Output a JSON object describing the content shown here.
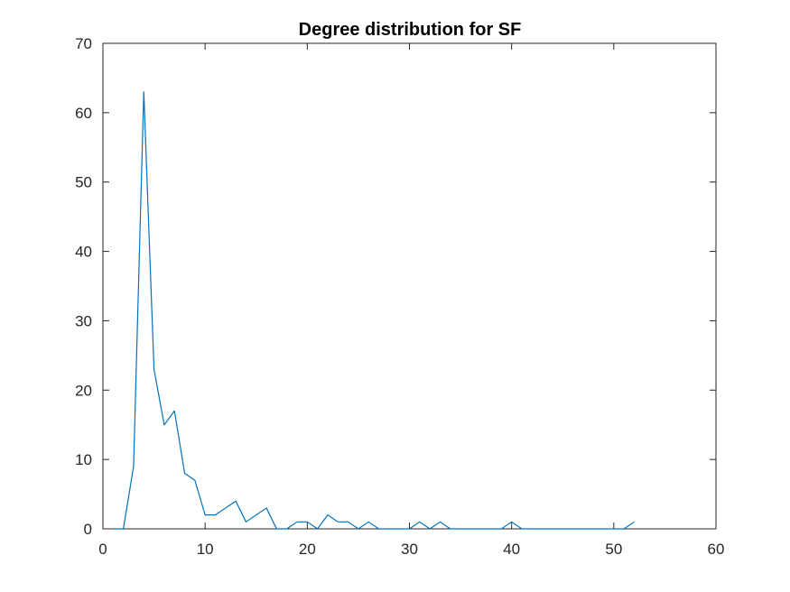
{
  "chart_data": {
    "type": "line",
    "title": "Degree distribution for SF",
    "xlabel": "",
    "ylabel": "",
    "xlim": [
      0,
      60
    ],
    "ylim": [
      0,
      70
    ],
    "x_ticks": [
      0,
      10,
      20,
      30,
      40,
      50,
      60
    ],
    "y_ticks": [
      0,
      10,
      20,
      30,
      40,
      50,
      60,
      70
    ],
    "grid": false,
    "legend": "none",
    "series": [
      {
        "color": "#0072BD",
        "x": [
          1,
          2,
          3,
          4,
          5,
          6,
          7,
          8,
          9,
          10,
          11,
          12,
          13,
          14,
          15,
          16,
          17,
          18,
          19,
          20,
          21,
          22,
          23,
          24,
          25,
          26,
          27,
          28,
          29,
          30,
          31,
          32,
          33,
          34,
          35,
          36,
          37,
          38,
          39,
          40,
          41,
          42,
          43,
          44,
          45,
          46,
          47,
          48,
          49,
          50,
          51,
          52
        ],
        "y": [
          0,
          0,
          9,
          63,
          23,
          15,
          17,
          8,
          7,
          2,
          2,
          3,
          4,
          1,
          2,
          3,
          0,
          0,
          1,
          1,
          0,
          2,
          1,
          1,
          0,
          1,
          0,
          0,
          0,
          0,
          1,
          0,
          1,
          0,
          0,
          0,
          0,
          0,
          0,
          1,
          0,
          0,
          0,
          0,
          0,
          0,
          0,
          0,
          0,
          0,
          0,
          1
        ]
      }
    ]
  }
}
